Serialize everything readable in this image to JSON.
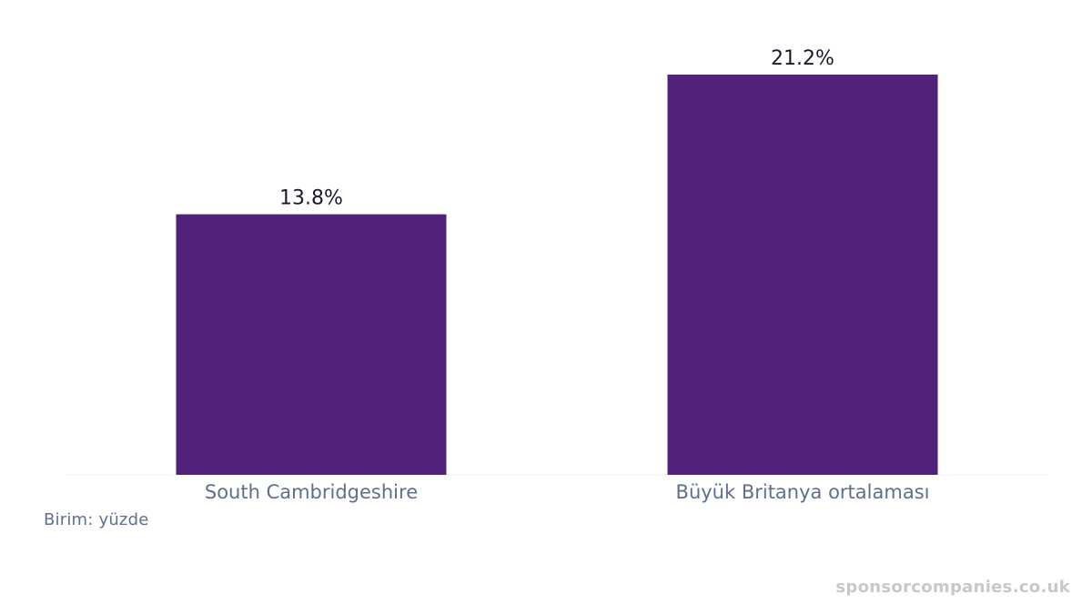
{
  "chart_data": {
    "type": "bar",
    "categories": [
      "South Cambridgeshire",
      "Büyük Britanya ortalaması"
    ],
    "values": [
      13.8,
      21.2
    ],
    "value_labels": [
      "13.8%",
      "21.2%"
    ],
    "unit_note": "Birim: yüzde",
    "ylim": [
      0,
      21.2
    ],
    "grid": false,
    "legend": "none",
    "bar_color": "#52217a",
    "value_label_color": "#1a1a2e",
    "category_label_color": "#5f6f8c"
  },
  "watermark": "sponsorcompanies.co.uk"
}
